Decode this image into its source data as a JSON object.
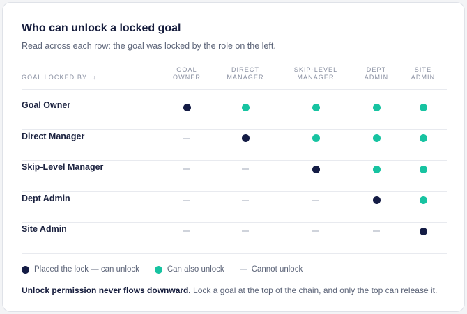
{
  "header": {
    "title": "Who can unlock a locked goal",
    "subtitle": "Read across each row: the goal was locked by the role on the left."
  },
  "table": {
    "row_header": "GOAL LOCKED BY",
    "sort_icon": "arrow-down-icon",
    "columns": [
      {
        "line1": "GOAL",
        "line2": "OWNER"
      },
      {
        "line1": "DIRECT",
        "line2": "MANAGER"
      },
      {
        "line1": "SKIP-LEVEL",
        "line2": "MANAGER"
      },
      {
        "line1": "DEPT",
        "line2": "ADMIN"
      },
      {
        "line1": "SITE",
        "line2": "ADMIN"
      }
    ],
    "rows": [
      {
        "label": "Goal Owner",
        "cells": [
          "lock",
          "can",
          "can",
          "can",
          "can"
        ]
      },
      {
        "label": "Direct Manager",
        "cells": [
          "cannot",
          "lock",
          "can",
          "can",
          "can"
        ]
      },
      {
        "label": "Skip-Level Manager",
        "cells": [
          "cannot",
          "cannot",
          "lock",
          "can",
          "can"
        ]
      },
      {
        "label": "Dept Admin",
        "cells": [
          "cannot",
          "cannot",
          "cannot",
          "lock",
          "can"
        ]
      },
      {
        "label": "Site Admin",
        "cells": [
          "cannot",
          "cannot",
          "cannot",
          "cannot",
          "lock"
        ]
      }
    ]
  },
  "legend": {
    "lock": "Placed the lock — can unlock",
    "can": "Can also unlock",
    "cannot": "Cannot unlock"
  },
  "footnote": {
    "bold": "Unlock permission never flows downward.",
    "text": " Lock a goal at the top of the chain, and only the top can release it."
  },
  "colors": {
    "lock": "#141c45",
    "can": "#17c3a1",
    "cannot": "#cfd3db"
  }
}
